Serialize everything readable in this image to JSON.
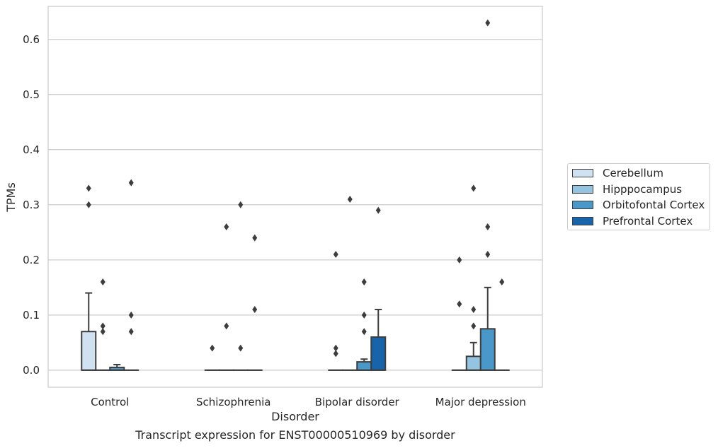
{
  "chart_data": {
    "type": "box",
    "title": "",
    "xlabel": "Disorder",
    "ylabel": "TPMs",
    "caption": "Transcript expression for ENST00000510969 by disorder",
    "ylim": [
      -0.031,
      0.66
    ],
    "yticks": [
      "0.0",
      "0.1",
      "0.2",
      "0.3",
      "0.4",
      "0.5",
      "0.6"
    ],
    "grid": true,
    "legend_position": "right",
    "categories": [
      "Control",
      "Schizophrenia",
      "Bipolar disorder",
      "Major depression"
    ],
    "series": [
      {
        "name": "Cerebellum",
        "color": "#d0e1f2",
        "boxes": [
          {
            "q1": 0,
            "median": 0,
            "q3": 0.07,
            "whisker_low": 0,
            "whisker_high": 0.14,
            "outliers": [
              0.33,
              0.3
            ]
          },
          {
            "q1": 0,
            "median": 0,
            "q3": 0,
            "whisker_low": 0,
            "whisker_high": 0,
            "outliers": [
              0.04
            ]
          },
          {
            "q1": 0,
            "median": 0,
            "q3": 0,
            "whisker_low": 0,
            "whisker_high": 0,
            "outliers": [
              0.21,
              0.04,
              0.03
            ]
          },
          {
            "q1": 0,
            "median": 0,
            "q3": 0,
            "whisker_low": 0,
            "whisker_high": 0,
            "outliers": [
              0.2,
              0.12
            ]
          }
        ]
      },
      {
        "name": "Hipppocampus",
        "color": "#94c4df",
        "boxes": [
          {
            "q1": 0,
            "median": 0,
            "q3": 0,
            "whisker_low": 0,
            "whisker_high": 0,
            "outliers": [
              0.16,
              0.08,
              0.07
            ]
          },
          {
            "q1": 0,
            "median": 0,
            "q3": 0,
            "whisker_low": 0,
            "whisker_high": 0,
            "outliers": [
              0.26,
              0.08
            ]
          },
          {
            "q1": 0,
            "median": 0,
            "q3": 0,
            "whisker_low": 0,
            "whisker_high": 0,
            "outliers": [
              0.31
            ]
          },
          {
            "q1": 0,
            "median": 0,
            "q3": 0.025,
            "whisker_low": 0,
            "whisker_high": 0.05,
            "outliers": [
              0.33,
              0.11,
              0.08
            ]
          }
        ]
      },
      {
        "name": "Orbitofontal Cortex",
        "color": "#4a98c9",
        "boxes": [
          {
            "q1": 0,
            "median": 0,
            "q3": 0.005,
            "whisker_low": 0,
            "whisker_high": 0.01,
            "outliers": []
          },
          {
            "q1": 0,
            "median": 0,
            "q3": 0,
            "whisker_low": 0,
            "whisker_high": 0,
            "outliers": [
              0.3,
              0.04
            ]
          },
          {
            "q1": 0,
            "median": 0,
            "q3": 0.015,
            "whisker_low": 0,
            "whisker_high": 0.02,
            "outliers": [
              0.16,
              0.1,
              0.07
            ]
          },
          {
            "q1": 0,
            "median": 0,
            "q3": 0.075,
            "whisker_low": 0,
            "whisker_high": 0.15,
            "outliers": [
              0.63,
              0.26,
              0.21
            ]
          }
        ]
      },
      {
        "name": "Prefrontal Cortex",
        "color": "#1764ab",
        "boxes": [
          {
            "q1": 0,
            "median": 0,
            "q3": 0,
            "whisker_low": 0,
            "whisker_high": 0,
            "outliers": [
              0.34,
              0.1,
              0.07
            ]
          },
          {
            "q1": 0,
            "median": 0,
            "q3": 0,
            "whisker_low": 0,
            "whisker_high": 0,
            "outliers": [
              0.24,
              0.11
            ]
          },
          {
            "q1": 0,
            "median": 0,
            "q3": 0.06,
            "whisker_low": 0,
            "whisker_high": 0.11,
            "outliers": [
              0.29
            ]
          },
          {
            "q1": 0,
            "median": 0,
            "q3": 0,
            "whisker_low": 0,
            "whisker_high": 0,
            "outliers": [
              0.16
            ]
          }
        ]
      }
    ]
  }
}
